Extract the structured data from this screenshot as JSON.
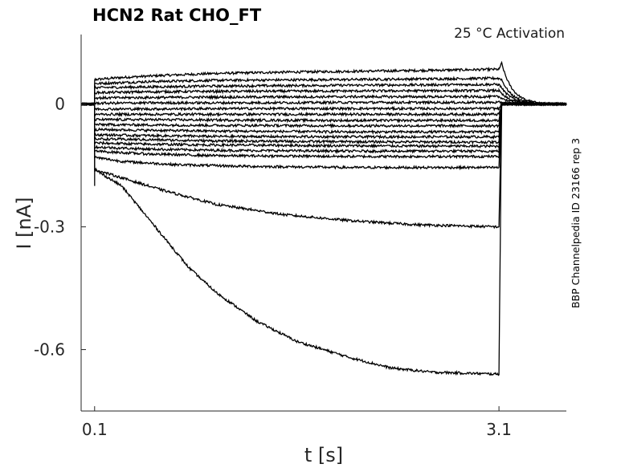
{
  "chart_data": {
    "type": "line",
    "title": "HCN2  Rat  CHO_FT",
    "subtitle": "25 °C  Activation",
    "xlabel": "t [s]",
    "ylabel": "I [nA]",
    "side_label": "BBP Channelpedia ID 23166 rep 3",
    "x_ticks": [
      0.1,
      3.1
    ],
    "x_tick_labels": [
      "0.1",
      "3.1"
    ],
    "y_ticks": [
      0,
      -0.3,
      -0.6
    ],
    "y_tick_labels": [
      "0",
      "-0.3",
      "-0.6"
    ],
    "xlim": [
      0.0,
      3.6
    ],
    "ylim": [
      -0.75,
      0.17
    ],
    "grid": false,
    "legend": "none",
    "line_color": "#000000",
    "step_start": 0.1,
    "step_end": 3.1,
    "series": [
      {
        "t": [
          0.1,
          0.3,
          0.6,
          1.0,
          1.5,
          2.0,
          2.5,
          3.1
        ],
        "i": [
          0.06,
          0.065,
          0.07,
          0.075,
          0.078,
          0.08,
          0.082,
          0.085
        ],
        "tail": 0.1
      },
      {
        "t": [
          0.1,
          0.5,
          1.0,
          2.0,
          3.1
        ],
        "i": [
          0.05,
          0.055,
          0.058,
          0.06,
          0.063
        ],
        "tail": 0.06
      },
      {
        "t": [
          0.1,
          0.5,
          1.0,
          2.0,
          3.1
        ],
        "i": [
          0.04,
          0.042,
          0.044,
          0.046,
          0.048
        ],
        "tail": 0.04
      },
      {
        "t": [
          0.1,
          0.5,
          1.0,
          2.0,
          3.1
        ],
        "i": [
          0.028,
          0.03,
          0.031,
          0.032,
          0.033
        ],
        "tail": 0.025
      },
      {
        "t": [
          0.1,
          0.5,
          1.0,
          2.0,
          3.1
        ],
        "i": [
          0.015,
          0.016,
          0.017,
          0.018,
          0.018
        ],
        "tail": 0.015
      },
      {
        "t": [
          0.1,
          0.5,
          1.0,
          2.0,
          3.1
        ],
        "i": [
          0.002,
          0.003,
          0.003,
          0.004,
          0.004
        ],
        "tail": 0.005
      },
      {
        "t": [
          0.1,
          0.5,
          1.0,
          2.0,
          3.1
        ],
        "i": [
          -0.012,
          -0.012,
          -0.011,
          -0.011,
          -0.011
        ],
        "tail": 0.0
      },
      {
        "t": [
          0.1,
          0.5,
          1.0,
          2.0,
          3.1
        ],
        "i": [
          -0.025,
          -0.025,
          -0.025,
          -0.025,
          -0.025
        ],
        "tail": 0.0
      },
      {
        "t": [
          0.1,
          0.5,
          1.0,
          2.0,
          3.1
        ],
        "i": [
          -0.038,
          -0.038,
          -0.039,
          -0.04,
          -0.04
        ],
        "tail": 0.0
      },
      {
        "t": [
          0.1,
          0.5,
          1.0,
          2.0,
          3.1
        ],
        "i": [
          -0.05,
          -0.051,
          -0.052,
          -0.053,
          -0.053
        ],
        "tail": 0.0
      },
      {
        "t": [
          0.1,
          0.5,
          1.0,
          2.0,
          3.1
        ],
        "i": [
          -0.062,
          -0.064,
          -0.066,
          -0.068,
          -0.068
        ],
        "tail": 0.0
      },
      {
        "t": [
          0.1,
          0.5,
          1.0,
          2.0,
          3.1
        ],
        "i": [
          -0.075,
          -0.077,
          -0.079,
          -0.08,
          -0.08
        ],
        "tail": 0.0
      },
      {
        "t": [
          0.1,
          0.5,
          1.0,
          2.0,
          3.1
        ],
        "i": [
          -0.085,
          -0.087,
          -0.09,
          -0.092,
          -0.093
        ],
        "tail": 0.0
      },
      {
        "t": [
          0.1,
          0.5,
          1.0,
          2.0,
          3.1
        ],
        "i": [
          -0.095,
          -0.098,
          -0.1,
          -0.102,
          -0.103
        ],
        "tail": 0.0
      },
      {
        "t": [
          0.1,
          0.5,
          1.0,
          2.0,
          3.1
        ],
        "i": [
          -0.105,
          -0.11,
          -0.113,
          -0.115,
          -0.115
        ],
        "tail": 0.0
      },
      {
        "t": [
          0.1,
          0.5,
          1.0,
          2.0,
          3.1
        ],
        "i": [
          -0.115,
          -0.122,
          -0.126,
          -0.128,
          -0.128
        ],
        "tail": 0.0
      },
      {
        "t": [
          0.1,
          0.3,
          0.7,
          1.2,
          2.0,
          3.1
        ],
        "i": [
          -0.13,
          -0.14,
          -0.148,
          -0.152,
          -0.155,
          -0.155
        ],
        "tail": 0.0
      },
      {
        "t": [
          0.1,
          0.3,
          0.6,
          1.0,
          1.5,
          2.0,
          2.5,
          3.1
        ],
        "i": [
          -0.16,
          -0.18,
          -0.21,
          -0.245,
          -0.27,
          -0.285,
          -0.295,
          -0.3
        ],
        "tail": 0.0
      },
      {
        "t": [
          0.1,
          0.3,
          0.5,
          0.8,
          1.0,
          1.3,
          1.6,
          2.0,
          2.3,
          2.6,
          3.1
        ],
        "i": [
          -0.16,
          -0.2,
          -0.28,
          -0.4,
          -0.46,
          -0.53,
          -0.58,
          -0.62,
          -0.645,
          -0.655,
          -0.66
        ],
        "tail": 0.0
      }
    ]
  }
}
